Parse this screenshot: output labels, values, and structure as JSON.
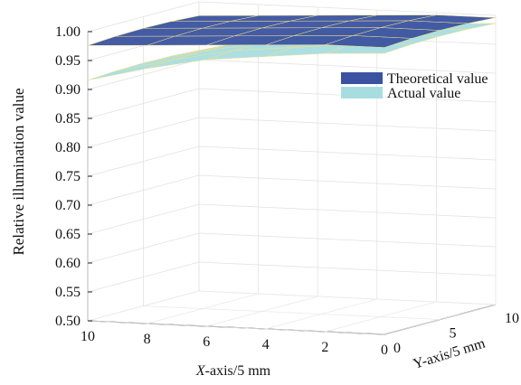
{
  "chart_data": {
    "type": "surface",
    "zlabel": "Relative illumination value",
    "xlabel_italic": "X",
    "xlabel_rest": "-axis/5 mm",
    "ylabel": "Y-axis/5 mm",
    "zlim": [
      0.5,
      1.0
    ],
    "z_ticks": [
      "0.50",
      "0.55",
      "0.60",
      "0.65",
      "0.70",
      "0.75",
      "0.80",
      "0.85",
      "0.90",
      "0.95",
      "1.00"
    ],
    "x_ticks": [
      "10",
      "8",
      "6",
      "4",
      "2",
      "0"
    ],
    "y_ticks": [
      "0",
      "5",
      "10"
    ],
    "xlim": [
      0,
      10
    ],
    "ylim": [
      0,
      10
    ],
    "grid": true,
    "legend_position": "top-right",
    "series": [
      {
        "name": "Theoretical value",
        "color": "#3a52a0",
        "z_by_x": [
          1.0,
          1.0,
          0.995,
          0.99,
          0.985,
          0.98
        ]
      },
      {
        "name": "Actual value",
        "color": "#a8dde0",
        "z_by_x": [
          0.99,
          0.985,
          0.975,
          0.965,
          0.945,
          0.92
        ]
      }
    ]
  }
}
